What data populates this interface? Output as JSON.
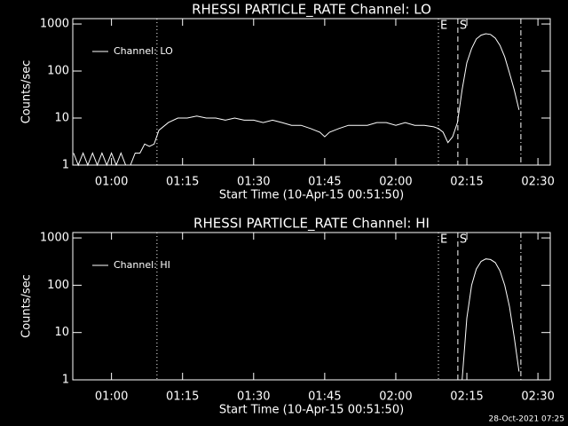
{
  "chart_data": [
    {
      "type": "line",
      "title": "RHESSI PARTICLE_RATE Channel: LO",
      "xlabel": "Start Time (10-Apr-15 00:51:50)",
      "ylabel": "Counts/sec",
      "log_y": true,
      "ylim": [
        1,
        1300
      ],
      "yticks": [
        1,
        10,
        100,
        1000
      ],
      "xlim": [
        51.83,
        152.6
      ],
      "xticks": [
        {
          "value": 60,
          "label": "01:00"
        },
        {
          "value": 75,
          "label": "01:15"
        },
        {
          "value": 90,
          "label": "01:30"
        },
        {
          "value": 105,
          "label": "01:45"
        },
        {
          "value": 120,
          "label": "02:00"
        },
        {
          "value": 135,
          "label": "02:15"
        },
        {
          "value": 150,
          "label": "02:30"
        }
      ],
      "x": [
        52,
        53,
        54,
        55,
        56,
        57,
        58,
        59,
        60,
        61,
        62,
        63,
        64,
        65,
        66,
        67,
        68,
        69,
        70,
        72,
        74,
        76,
        78,
        80,
        82,
        84,
        86,
        88,
        90,
        92,
        94,
        96,
        98,
        100,
        102,
        104,
        105,
        106,
        108,
        110,
        112,
        114,
        116,
        118,
        120,
        122,
        124,
        126,
        128,
        129,
        130,
        131,
        132,
        133,
        134,
        135,
        136,
        137,
        138,
        139,
        140,
        141,
        142,
        143,
        144,
        145,
        146
      ],
      "series": [
        {
          "name": "Channel: LO",
          "color": "#ffffff",
          "values": [
            1.8,
            1,
            1.8,
            1,
            1.8,
            1,
            1.8,
            1,
            1.8,
            1,
            1.8,
            1,
            1,
            1.8,
            1.8,
            2.8,
            2.5,
            2.8,
            5.5,
            8,
            10,
            10,
            11,
            10,
            10,
            9,
            10,
            9,
            9,
            8,
            9,
            8,
            7,
            7,
            6,
            5,
            4,
            5,
            6,
            7,
            7,
            7,
            8,
            8,
            7,
            8,
            7,
            7,
            6.5,
            6,
            5,
            3,
            4,
            8,
            40,
            150,
            300,
            480,
            580,
            620,
            600,
            500,
            350,
            200,
            90,
            40,
            15
          ]
        }
      ],
      "vlines": [
        {
          "x": 69.6,
          "style": "dotted"
        },
        {
          "x": 129,
          "style": "dotted",
          "label": "E"
        },
        {
          "x": 133.1,
          "style": "dashed",
          "label": "S"
        },
        {
          "x": 146.4,
          "style": "dashdot"
        }
      ]
    },
    {
      "type": "line",
      "title": "RHESSI PARTICLE_RATE Channel: HI",
      "xlabel": "Start Time (10-Apr-15 00:51:50)",
      "ylabel": "Counts/sec",
      "log_y": true,
      "ylim": [
        1,
        1300
      ],
      "yticks": [
        1,
        10,
        100,
        1000
      ],
      "xlim": [
        51.83,
        152.6
      ],
      "xticks": [
        {
          "value": 60,
          "label": "01:00"
        },
        {
          "value": 75,
          "label": "01:15"
        },
        {
          "value": 90,
          "label": "01:30"
        },
        {
          "value": 105,
          "label": "01:45"
        },
        {
          "value": 120,
          "label": "02:00"
        },
        {
          "value": 135,
          "label": "02:15"
        },
        {
          "value": 150,
          "label": "02:30"
        }
      ],
      "x": [
        134,
        135,
        136,
        137,
        138,
        139,
        140,
        141,
        142,
        143,
        144,
        145,
        146
      ],
      "series": [
        {
          "name": "Channel: HI",
          "color": "#ffffff",
          "values": [
            1,
            20,
            100,
            220,
            320,
            360,
            350,
            300,
            200,
            100,
            35,
            8,
            1.5
          ]
        }
      ],
      "vlines": [
        {
          "x": 69.6,
          "style": "dotted"
        },
        {
          "x": 129,
          "style": "dotted",
          "label": "E"
        },
        {
          "x": 133.1,
          "style": "dashed",
          "label": "S"
        },
        {
          "x": 146.4,
          "style": "dashdot"
        }
      ]
    }
  ],
  "footer": "28-Oct-2021 07:25"
}
